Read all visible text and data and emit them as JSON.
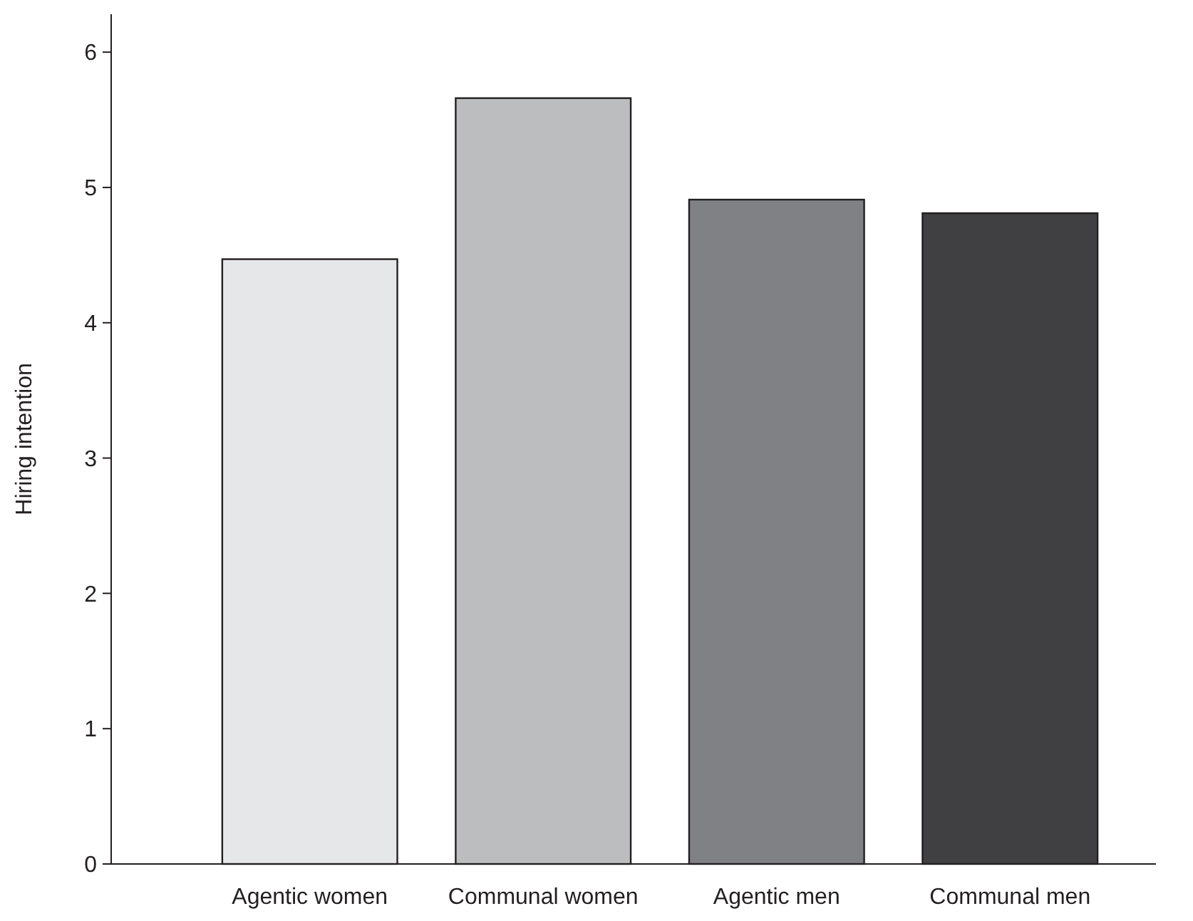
{
  "chart_data": {
    "type": "bar",
    "ylabel": "Hiring intention",
    "categories": [
      "Agentic women",
      "Communal women",
      "Agentic men",
      "Communal men"
    ],
    "values": [
      4.47,
      5.66,
      4.91,
      4.81
    ],
    "colors": [
      "#e6e7e8",
      "#bcbdbf",
      "#808184",
      "#404042"
    ],
    "ylim": [
      0,
      6.28
    ],
    "yticks": [
      0,
      1,
      2,
      3,
      4,
      5,
      6
    ],
    "grid": false
  }
}
